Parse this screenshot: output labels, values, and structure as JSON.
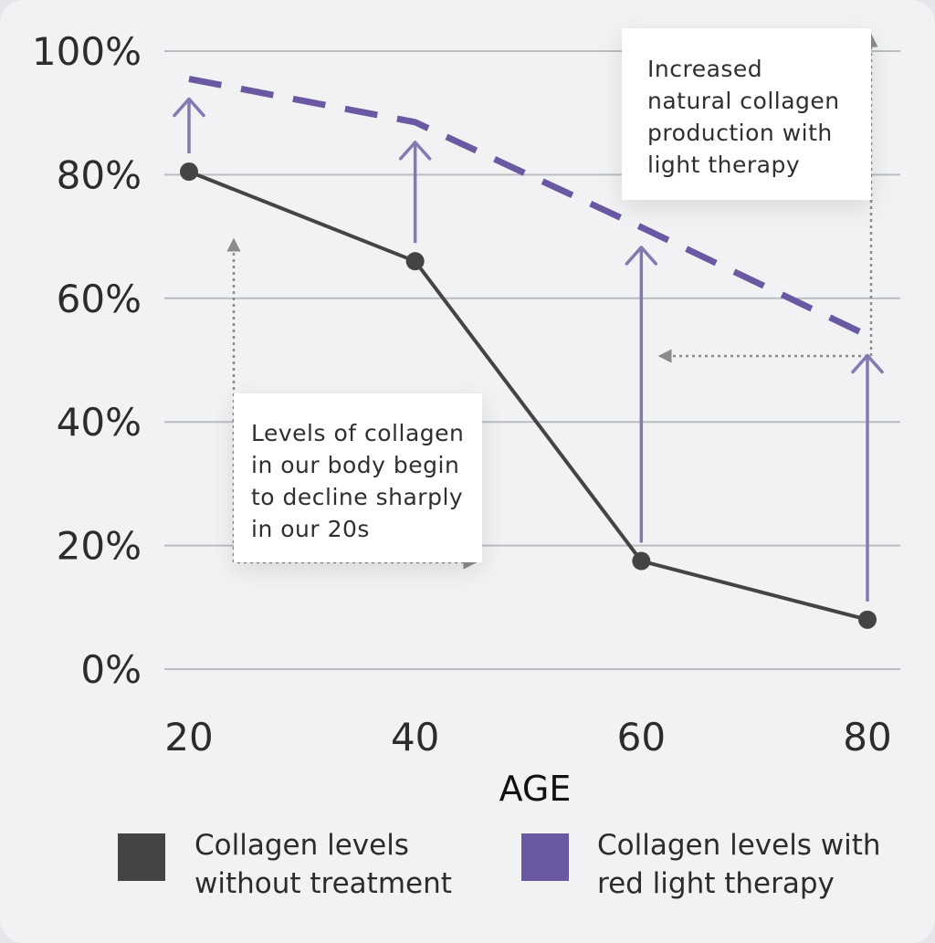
{
  "chart_data": {
    "type": "line",
    "xlabel": "AGE",
    "ylabel": "",
    "x": [
      20,
      40,
      60,
      80
    ],
    "x_tick_labels": [
      "20",
      "40",
      "60",
      "80"
    ],
    "y_tick_labels": [
      "0%",
      "20%",
      "40%",
      "60%",
      "80%",
      "100%"
    ],
    "ylim": [
      0,
      100
    ],
    "grid": "horizontal",
    "series": [
      {
        "name": "Collagen levels without treatment",
        "x": [
          20,
          40,
          60,
          80
        ],
        "values": [
          80.5,
          66,
          17.5,
          8
        ],
        "style": "solid",
        "markers": true,
        "color": "#444446"
      },
      {
        "name": "Collagen levels with red light therapy",
        "x": [
          20,
          40,
          60,
          80
        ],
        "values": [
          95.5,
          88.5,
          71.5,
          54
        ],
        "style": "dashed",
        "markers": false,
        "color": "#6b58a3"
      }
    ],
    "annotations": [
      {
        "lines": [
          "Levels of collagen",
          "in our body begin",
          "to decline sharply",
          "in our 20s"
        ]
      },
      {
        "lines": [
          "Increased",
          "natural collagen",
          "production with",
          "light therapy"
        ]
      }
    ],
    "legend": {
      "placement": "bottom",
      "items": [
        {
          "line1": "Collagen levels",
          "line2": "without treatment",
          "color": "#444446"
        },
        {
          "line1": "Collagen levels with",
          "line2": "red light therapy",
          "color": "#6b58a3"
        }
      ]
    }
  },
  "colors": {
    "background": "#f1f2f4",
    "gridline": "#b9bcc1",
    "arrow": "#8579b3",
    "dotted": "#8b8b8b"
  }
}
